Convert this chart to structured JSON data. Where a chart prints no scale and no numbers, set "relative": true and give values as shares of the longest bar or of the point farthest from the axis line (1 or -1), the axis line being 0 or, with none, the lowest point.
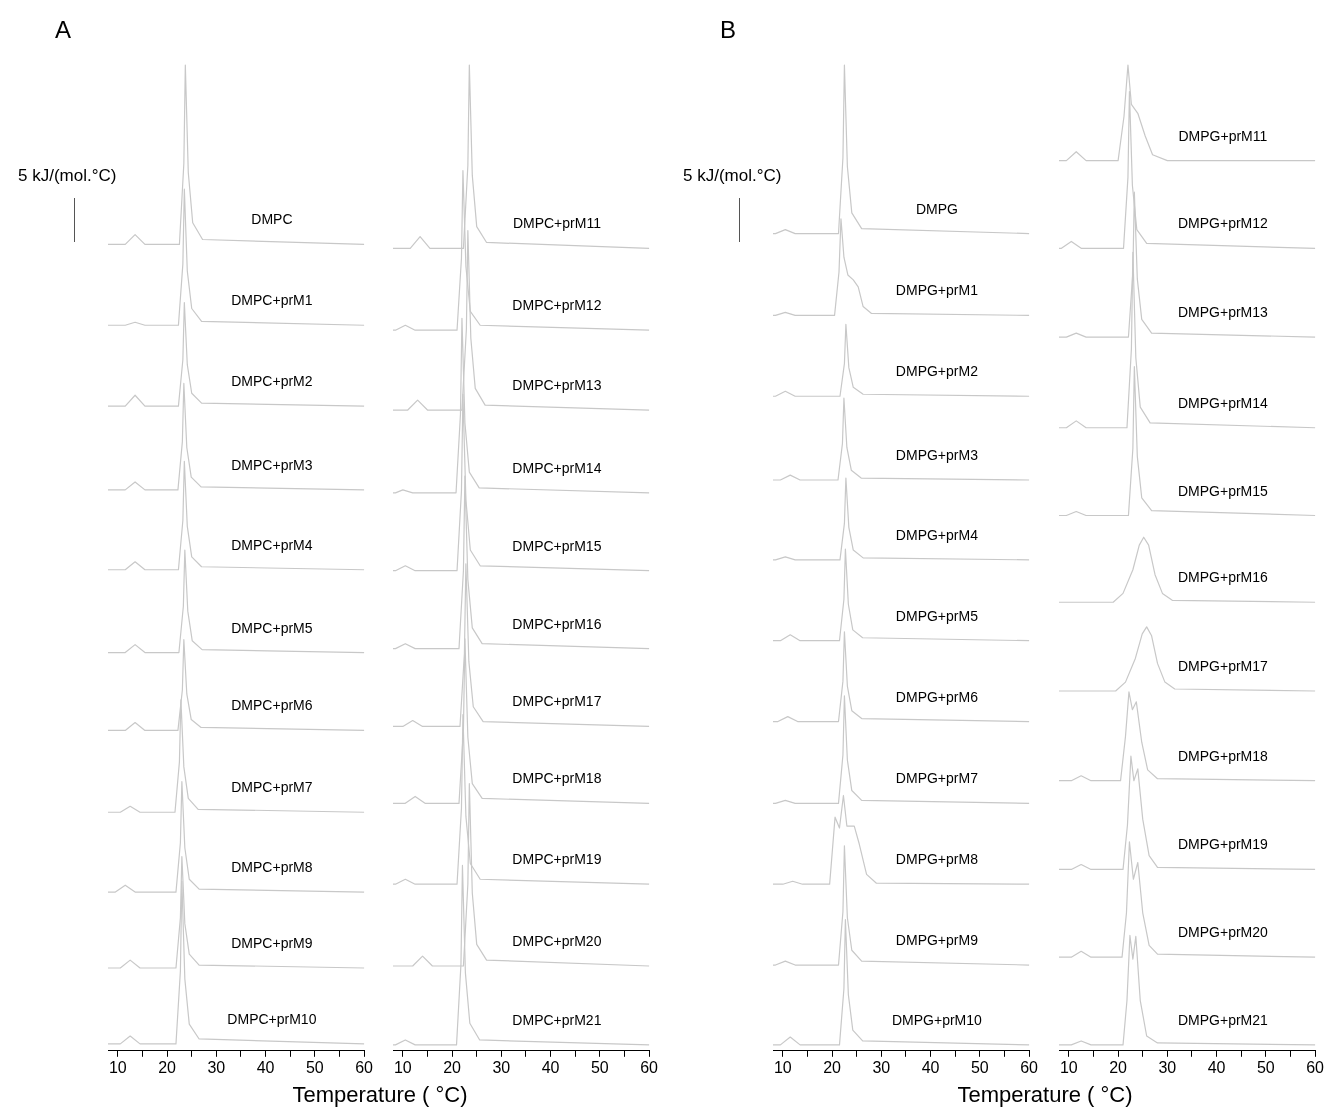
{
  "chart_data": [
    {
      "type": "line",
      "title": "A",
      "xlabel": "Temperature ( °C)",
      "annotations": [
        "5 kJ/(mol.°C)"
      ],
      "relative": true,
      "xlim": [
        8,
        60
      ],
      "xticks": [
        10,
        {
          "value": 15,
          "label": null
        },
        20,
        {
          "value": 25,
          "label": null
        },
        30,
        {
          "value": 35,
          "label": null
        },
        40,
        {
          "value": 45,
          "label": null
        },
        50,
        {
          "value": 55,
          "label": null
        },
        60
      ],
      "series": [
        {
          "name": "DMPC",
          "color": "#c8c8c8",
          "x": [
            8,
            11.5,
            13.5,
            15.5,
            22.5,
            23.4,
            23.7,
            24.3,
            25.2,
            27.2,
            60
          ],
          "values": [
            0.818,
            0.818,
            0.828,
            0.818,
            0.818,
            0.9,
            1,
            0.891,
            0.84,
            0.823,
            0.818
          ]
        },
        {
          "name": "DMPC+prM1",
          "color": "#c8c8c8",
          "x": [
            8,
            11.5,
            13.5,
            15.5,
            22.3,
            23.2,
            23.5,
            24.1,
            25,
            27,
            60
          ],
          "values": [
            0.736,
            0.736,
            0.739,
            0.736,
            0.736,
            0.798,
            0.874,
            0.791,
            0.753,
            0.74,
            0.736
          ]
        },
        {
          "name": "DMPC+prM2",
          "color": "#c8c8c8",
          "x": [
            8,
            11.5,
            13.5,
            15.5,
            22.3,
            23.2,
            23.5,
            24.1,
            25,
            27,
            60
          ],
          "values": [
            0.654,
            0.654,
            0.665,
            0.654,
            0.654,
            0.701,
            0.759,
            0.696,
            0.667,
            0.657,
            0.654
          ]
        },
        {
          "name": "DMPC+prM3",
          "color": "#c8c8c8",
          "x": [
            8,
            11.5,
            13.5,
            15.5,
            22.2,
            23.1,
            23.4,
            24,
            24.9,
            26.9,
            60
          ],
          "values": [
            0.569,
            0.569,
            0.577,
            0.569,
            0.569,
            0.618,
            0.677,
            0.612,
            0.582,
            0.572,
            0.569
          ]
        },
        {
          "name": "DMPC+prM4",
          "color": "#c8c8c8",
          "x": [
            8,
            11.5,
            13.5,
            15.5,
            22.3,
            23.2,
            23.5,
            24.1,
            25,
            27,
            60
          ],
          "values": [
            0.488,
            0.488,
            0.496,
            0.488,
            0.488,
            0.538,
            0.598,
            0.532,
            0.501,
            0.491,
            0.488
          ]
        },
        {
          "name": "DMPC+prM5",
          "color": "#c8c8c8",
          "x": [
            8,
            11.5,
            13.5,
            15.5,
            22.4,
            23.3,
            23.6,
            24.2,
            25.1,
            27.1,
            60
          ],
          "values": [
            0.404,
            0.404,
            0.412,
            0.404,
            0.404,
            0.451,
            0.508,
            0.446,
            0.416,
            0.407,
            0.404
          ]
        },
        {
          "name": "DMPC+prM6",
          "color": "#c8c8c8",
          "x": [
            8,
            11.5,
            13.5,
            15.5,
            22.2,
            23.1,
            23.4,
            24,
            24.9,
            26.9,
            60
          ],
          "values": [
            0.325,
            0.325,
            0.333,
            0.325,
            0.325,
            0.366,
            0.417,
            0.362,
            0.336,
            0.328,
            0.325
          ]
        },
        {
          "name": "DMPC+prM7",
          "color": "#c8c8c8",
          "x": [
            8,
            10.5,
            12.5,
            14.5,
            21.6,
            22.5,
            22.8,
            23.4,
            24.3,
            26.3,
            60
          ],
          "values": [
            0.242,
            0.242,
            0.248,
            0.242,
            0.242,
            0.293,
            0.356,
            0.288,
            0.256,
            0.245,
            0.242
          ]
        },
        {
          "name": "DMPC+prM8",
          "color": "#c8c8c8",
          "x": [
            8,
            9.5,
            11.5,
            13.5,
            21.8,
            22.7,
            23,
            23.6,
            24.5,
            26.5,
            60
          ],
          "values": [
            0.161,
            0.161,
            0.168,
            0.161,
            0.161,
            0.211,
            0.273,
            0.206,
            0.174,
            0.164,
            0.161
          ]
        },
        {
          "name": "DMPC+prM9",
          "color": "#c8c8c8",
          "x": [
            8,
            10.5,
            12.5,
            14.5,
            21.8,
            22.7,
            23,
            23.6,
            24.5,
            26.5,
            60
          ],
          "values": [
            0.084,
            0.084,
            0.092,
            0.084,
            0.084,
            0.135,
            0.197,
            0.129,
            0.098,
            0.087,
            0.084
          ]
        },
        {
          "name": "DMPC+prM10",
          "color": "#c8c8c8",
          "x": [
            8,
            10.5,
            12.5,
            14.5,
            21.8,
            22.7,
            23,
            23.6,
            24.5,
            26.5,
            60
          ],
          "values": [
            0.007,
            0.007,
            0.015,
            0.007,
            0.007,
            0.081,
            0.172,
            0.073,
            0.027,
            0.012,
            0.007
          ]
        }
      ]
    },
    {
      "type": "line",
      "relative": true,
      "xlim": [
        8,
        60
      ],
      "xticks": [
        10,
        {
          "value": 15,
          "label": null
        },
        20,
        {
          "value": 25,
          "label": null
        },
        30,
        {
          "value": 35,
          "label": null
        },
        40,
        {
          "value": 45,
          "label": null
        },
        50,
        {
          "value": 55,
          "label": null
        },
        60
      ],
      "series": [
        {
          "name": "DMPC+prM11",
          "color": "#c8c8c8",
          "x": [
            8,
            11.5,
            13.5,
            15.5,
            22.3,
            23.2,
            23.5,
            24.1,
            25,
            27,
            60
          ],
          "values": [
            0.814,
            0.814,
            0.826,
            0.814,
            0.814,
            0.898,
            1,
            0.888,
            0.836,
            0.82,
            0.814
          ]
        },
        {
          "name": "DMPC+prM12",
          "color": "#c8c8c8",
          "x": [
            8,
            8.5,
            10.5,
            12.5,
            21,
            21.9,
            22.2,
            22.8,
            23.7,
            25.7,
            60
          ],
          "values": [
            0.731,
            0.731,
            0.736,
            0.731,
            0.731,
            0.804,
            0.893,
            0.796,
            0.75,
            0.736,
            0.731
          ]
        },
        {
          "name": "DMPC+prM13",
          "color": "#c8c8c8",
          "x": [
            8,
            11,
            13,
            15,
            22,
            22.9,
            23.2,
            23.8,
            24.7,
            26.7,
            60
          ],
          "values": [
            0.65,
            0.65,
            0.66,
            0.65,
            0.65,
            0.732,
            0.832,
            0.723,
            0.672,
            0.655,
            0.65
          ]
        },
        {
          "name": "DMPC+prM14",
          "color": "#c8c8c8",
          "x": [
            8,
            8.5,
            10,
            12,
            20.8,
            21.7,
            22,
            22.6,
            23.5,
            25.5,
            60
          ],
          "values": [
            0.566,
            0.566,
            0.569,
            0.566,
            0.566,
            0.646,
            0.743,
            0.637,
            0.587,
            0.571,
            0.566
          ]
        },
        {
          "name": "DMPC+prM15",
          "color": "#c8c8c8",
          "x": [
            8,
            8.5,
            10.5,
            12.5,
            21,
            21.9,
            22.2,
            22.8,
            23.7,
            25.7,
            60
          ],
          "values": [
            0.487,
            0.487,
            0.492,
            0.487,
            0.487,
            0.568,
            0.666,
            0.559,
            0.508,
            0.492,
            0.487
          ]
        },
        {
          "name": "DMPC+prM16",
          "color": "#c8c8c8",
          "x": [
            8,
            8.5,
            10.5,
            12.5,
            21.4,
            22.3,
            22.6,
            23.2,
            24.1,
            26.1,
            60
          ],
          "values": [
            0.408,
            0.408,
            0.413,
            0.408,
            0.408,
            0.487,
            0.583,
            0.478,
            0.429,
            0.413,
            0.408
          ]
        },
        {
          "name": "DMPC+prM17",
          "color": "#c8c8c8",
          "x": [
            8,
            10,
            12,
            14,
            21.6,
            22.5,
            22.8,
            23.4,
            24.3,
            26.3,
            60
          ],
          "values": [
            0.329,
            0.329,
            0.335,
            0.329,
            0.329,
            0.403,
            0.494,
            0.395,
            0.349,
            0.334,
            0.329
          ]
        },
        {
          "name": "DMPC+prM18",
          "color": "#c8c8c8",
          "x": [
            8,
            10.5,
            12.5,
            14.5,
            21.4,
            22.3,
            22.6,
            23.2,
            24.1,
            26.1,
            60
          ],
          "values": [
            0.251,
            0.251,
            0.258,
            0.251,
            0.251,
            0.326,
            0.418,
            0.318,
            0.271,
            0.256,
            0.251
          ]
        },
        {
          "name": "DMPC+prM19",
          "color": "#c8c8c8",
          "x": [
            8,
            8.5,
            10.5,
            12.5,
            21,
            21.9,
            22.2,
            22.8,
            23.7,
            25.7,
            60
          ],
          "values": [
            0.169,
            0.169,
            0.174,
            0.169,
            0.169,
            0.246,
            0.341,
            0.238,
            0.19,
            0.174,
            0.169
          ]
        },
        {
          "name": "DMPC+prM20",
          "color": "#c8c8c8",
          "x": [
            8,
            12,
            14,
            16,
            22.3,
            23.2,
            23.5,
            24.1,
            25,
            27,
            60
          ],
          "values": [
            0.086,
            0.086,
            0.096,
            0.086,
            0.086,
            0.169,
            0.271,
            0.16,
            0.108,
            0.092,
            0.086
          ]
        },
        {
          "name": "DMPC+prM21",
          "color": "#c8c8c8",
          "x": [
            8,
            8.5,
            10.5,
            12.5,
            20.9,
            21.8,
            22.1,
            22.7,
            23.6,
            25.6,
            60
          ],
          "values": [
            0.006,
            0.006,
            0.011,
            0.006,
            0.006,
            0.088,
            0.188,
            0.079,
            0.028,
            0.011,
            0.006
          ]
        }
      ]
    },
    {
      "type": "line",
      "title": "B",
      "xlabel": "Temperature ( °C)",
      "annotations": [
        "5 kJ/(mol.°C)"
      ],
      "relative": true,
      "xlim": [
        8,
        60
      ],
      "xticks": [
        10,
        {
          "value": 15,
          "label": null
        },
        20,
        {
          "value": 25,
          "label": null
        },
        30,
        {
          "value": 35,
          "label": null
        },
        40,
        {
          "value": 45,
          "label": null
        },
        50,
        {
          "value": 55,
          "label": null
        },
        60
      ],
      "series": [
        {
          "name": "DMPG",
          "color": "#c8c8c8",
          "x": [
            8,
            8.5,
            10.5,
            12.5,
            21.3,
            22.2,
            22.5,
            23.1,
            24,
            26,
            60
          ],
          "values": [
            0.829,
            0.829,
            0.833,
            0.829,
            0.829,
            0.906,
            1,
            0.897,
            0.85,
            0.834,
            0.829
          ]
        },
        {
          "name": "DMPG+prM1",
          "color": "#c8c8c8",
          "x": [
            8,
            8.5,
            10.5,
            12.5,
            20.5,
            21.4,
            21.8,
            22.4,
            23.2,
            24.3,
            25.3,
            26.3,
            28,
            60
          ],
          "values": [
            0.746,
            0.746,
            0.749,
            0.746,
            0.746,
            0.79,
            0.844,
            0.805,
            0.787,
            0.782,
            0.775,
            0.755,
            0.748,
            0.746
          ]
        },
        {
          "name": "DMPG+prM2",
          "color": "#c8c8c8",
          "x": [
            8,
            8.5,
            10.5,
            12.5,
            21.6,
            22.5,
            22.8,
            23.4,
            24.3,
            26.3,
            60
          ],
          "values": [
            0.664,
            0.664,
            0.669,
            0.664,
            0.664,
            0.697,
            0.737,
            0.693,
            0.673,
            0.666,
            0.664
          ]
        },
        {
          "name": "DMPG+prM3",
          "color": "#c8c8c8",
          "x": [
            8,
            9.5,
            11.5,
            13.5,
            21.2,
            22.1,
            22.4,
            23,
            23.9,
            25.9,
            60
          ],
          "values": [
            0.579,
            0.579,
            0.584,
            0.579,
            0.579,
            0.616,
            0.662,
            0.612,
            0.589,
            0.581,
            0.579
          ]
        },
        {
          "name": "DMPG+prM4",
          "color": "#c8c8c8",
          "x": [
            8,
            8.5,
            10.5,
            12.5,
            21.6,
            22.5,
            22.8,
            23.4,
            24.3,
            26.3,
            60
          ],
          "values": [
            0.498,
            0.498,
            0.501,
            0.498,
            0.498,
            0.535,
            0.581,
            0.531,
            0.508,
            0.5,
            0.498
          ]
        },
        {
          "name": "DMPG+prM5",
          "color": "#c8c8c8",
          "x": [
            8,
            9.5,
            11.5,
            13.5,
            21.5,
            22.4,
            22.7,
            23.3,
            24.2,
            26.2,
            60
          ],
          "values": [
            0.416,
            0.416,
            0.422,
            0.416,
            0.416,
            0.458,
            0.509,
            0.453,
            0.427,
            0.419,
            0.416
          ]
        },
        {
          "name": "DMPG+prM6",
          "color": "#c8c8c8",
          "x": [
            8,
            9,
            11,
            13,
            21.3,
            22.2,
            22.5,
            23.1,
            24,
            26,
            60
          ],
          "values": [
            0.334,
            0.334,
            0.339,
            0.334,
            0.334,
            0.375,
            0.425,
            0.37,
            0.345,
            0.337,
            0.334
          ]
        },
        {
          "name": "DMPG+prM7",
          "color": "#c8c8c8",
          "x": [
            8,
            8.5,
            10.5,
            12.5,
            21.3,
            22.2,
            22.5,
            23.1,
            24,
            26,
            60
          ],
          "values": [
            0.251,
            0.251,
            0.254,
            0.251,
            0.251,
            0.3,
            0.36,
            0.295,
            0.264,
            0.254,
            0.251
          ]
        },
        {
          "name": "DMPG+prM8",
          "color": "#c8c8c8",
          "x": [
            8,
            10,
            12,
            14,
            19.5,
            20.6,
            21.5,
            22.3,
            23,
            24.5,
            25.5,
            27,
            29,
            60
          ],
          "values": [
            0.169,
            0.169,
            0.172,
            0.169,
            0.169,
            0.237,
            0.226,
            0.259,
            0.228,
            0.228,
            0.21,
            0.179,
            0.17,
            0.169
          ]
        },
        {
          "name": "DMPG+prM9",
          "color": "#c8c8c8",
          "x": [
            8,
            8.5,
            10.5,
            12.5,
            21.3,
            22.2,
            22.5,
            23.1,
            24,
            26,
            60
          ],
          "values": [
            0.087,
            0.087,
            0.091,
            0.087,
            0.087,
            0.141,
            0.208,
            0.135,
            0.102,
            0.091,
            0.087
          ]
        },
        {
          "name": "DMPG+prM10",
          "color": "#c8c8c8",
          "x": [
            8,
            9.5,
            11.5,
            13.5,
            21.5,
            22.4,
            22.7,
            23.3,
            24.2,
            26.2,
            60
          ],
          "values": [
            0.006,
            0.006,
            0.014,
            0.006,
            0.006,
            0.063,
            0.133,
            0.057,
            0.021,
            0.01,
            0.006
          ]
        }
      ]
    },
    {
      "type": "line",
      "relative": true,
      "xlim": [
        8,
        60
      ],
      "xticks": [
        10,
        {
          "value": 15,
          "label": null
        },
        20,
        {
          "value": 25,
          "label": null
        },
        30,
        {
          "value": 35,
          "label": null
        },
        40,
        {
          "value": 45,
          "label": null
        },
        50,
        {
          "value": 55,
          "label": null
        },
        60
      ],
      "series": [
        {
          "name": "DMPG+prM11",
          "color": "#c8c8c8",
          "x": [
            8,
            9.5,
            11.5,
            13.5,
            20,
            21.2,
            22,
            22.7,
            24,
            25.5,
            27,
            30,
            60
          ],
          "values": [
            0.903,
            0.903,
            0.912,
            0.903,
            0.903,
            0.948,
            1,
            0.96,
            0.951,
            0.928,
            0.909,
            0.903,
            0.903
          ]
        },
        {
          "name": "DMPG+prM12",
          "color": "#c8c8c8",
          "x": [
            8,
            8.5,
            10.5,
            12.5,
            21.1,
            22,
            22.3,
            22.9,
            23.8,
            25.8,
            60
          ],
          "values": [
            0.814,
            0.814,
            0.821,
            0.814,
            0.814,
            0.886,
            0.973,
            0.878,
            0.833,
            0.819,
            0.814
          ]
        },
        {
          "name": "DMPG+prM13",
          "color": "#c8c8c8",
          "x": [
            8,
            9.5,
            11.5,
            13.5,
            22.1,
            23,
            23.3,
            23.9,
            24.8,
            26.8,
            60
          ],
          "values": [
            0.724,
            0.724,
            0.728,
            0.724,
            0.724,
            0.79,
            0.871,
            0.783,
            0.742,
            0.728,
            0.724
          ]
        },
        {
          "name": "DMPG+prM14",
          "color": "#c8c8c8",
          "x": [
            8,
            9.5,
            11.5,
            13.5,
            21.8,
            22.7,
            23,
            23.6,
            24.5,
            26.5,
            60
          ],
          "values": [
            0.632,
            0.632,
            0.639,
            0.632,
            0.632,
            0.712,
            0.81,
            0.703,
            0.653,
            0.637,
            0.632
          ]
        },
        {
          "name": "DMPG+prM15",
          "color": "#c8c8c8",
          "x": [
            8,
            9.5,
            11.5,
            13.5,
            22.1,
            23,
            23.3,
            23.9,
            24.8,
            26.8,
            60
          ],
          "values": [
            0.543,
            0.543,
            0.547,
            0.543,
            0.543,
            0.611,
            0.694,
            0.603,
            0.561,
            0.548,
            0.543
          ]
        },
        {
          "name": "DMPG+prM16",
          "color": "#c8c8c8",
          "x": [
            8,
            19,
            21,
            23,
            24.3,
            25.2,
            26.2,
            27.5,
            29,
            31,
            60
          ],
          "values": [
            0.455,
            0.455,
            0.464,
            0.488,
            0.513,
            0.521,
            0.513,
            0.483,
            0.464,
            0.457,
            0.455
          ]
        },
        {
          "name": "DMPG+prM17",
          "color": "#c8c8c8",
          "x": [
            8,
            19.5,
            21.5,
            23.5,
            24.9,
            25.8,
            26.8,
            28,
            29.5,
            31.5,
            60
          ],
          "values": [
            0.365,
            0.365,
            0.374,
            0.398,
            0.423,
            0.43,
            0.421,
            0.393,
            0.374,
            0.367,
            0.365
          ]
        },
        {
          "name": "DMPG+prM18",
          "color": "#c8c8c8",
          "x": [
            8,
            10.5,
            12.5,
            14.5,
            20.5,
            21.5,
            22.2,
            22.9,
            23.7,
            24.8,
            26,
            28,
            60
          ],
          "values": [
            0.274,
            0.274,
            0.279,
            0.274,
            0.274,
            0.319,
            0.364,
            0.346,
            0.354,
            0.313,
            0.285,
            0.276,
            0.274
          ]
        },
        {
          "name": "DMPG+prM19",
          "color": "#c8c8c8",
          "x": [
            8,
            10.5,
            12.5,
            14.5,
            21,
            21.9,
            22.6,
            23.2,
            24,
            25,
            26.3,
            28,
            60
          ],
          "values": [
            0.184,
            0.184,
            0.189,
            0.184,
            0.184,
            0.229,
            0.299,
            0.274,
            0.286,
            0.235,
            0.198,
            0.186,
            0.184
          ]
        },
        {
          "name": "DMPG+prM20",
          "color": "#c8c8c8",
          "x": [
            8,
            10.5,
            12.5,
            14.5,
            20.8,
            21.7,
            22.3,
            23.1,
            24,
            25,
            26.3,
            28,
            60
          ],
          "values": [
            0.095,
            0.095,
            0.101,
            0.095,
            0.095,
            0.14,
            0.212,
            0.174,
            0.191,
            0.14,
            0.107,
            0.098,
            0.095
          ]
        },
        {
          "name": "DMPG+prM21",
          "color": "#c8c8c8",
          "x": [
            8,
            10.5,
            12.5,
            14.5,
            21,
            21.8,
            22.4,
            23,
            23.6,
            24.5,
            25.8,
            28,
            60
          ],
          "values": [
            0.006,
            0.006,
            0.01,
            0.006,
            0.006,
            0.051,
            0.117,
            0.093,
            0.116,
            0.051,
            0.015,
            0.008,
            0.006
          ]
        }
      ]
    }
  ]
}
